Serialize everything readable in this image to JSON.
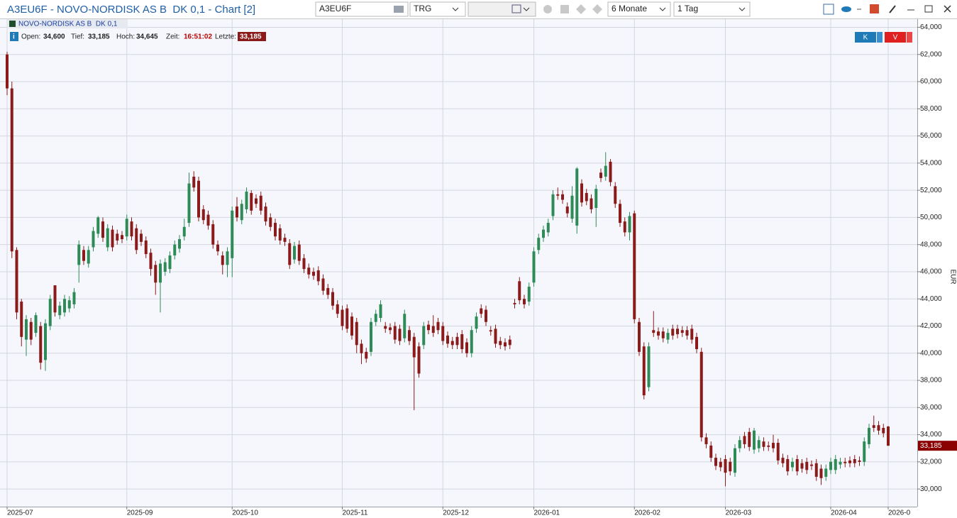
{
  "window": {
    "title": "A3EU6F - NOVO-NORDISK AS B  DK 0,1 - Chart [2]",
    "symbol_field": "A3EU6F",
    "exchange_field": "TRG",
    "period_field": "6 Monate",
    "interval_field": "1 Tag"
  },
  "quote": {
    "open_label": "Open:",
    "open": "34,600",
    "low_label": "Tief:",
    "low": "33,185",
    "high_label": "Hoch:",
    "high": "34,645",
    "time_label": "Zeit:",
    "time": "16:51:02",
    "last_label": "Letzte:",
    "last": "33,185"
  },
  "buttons": {
    "buy": "K",
    "sell": "V"
  },
  "chart_data": {
    "type": "candlestick",
    "legend_label": "NOVO-NORDISK AS B  DK 0,1",
    "y_label": "EUR",
    "up_color": "#2e8b57",
    "down_color": "#8b1a1a",
    "grid": true,
    "ylim": [
      28700,
      64600
    ],
    "yticks": [
      {
        "value": 30000,
        "label": "30,000"
      },
      {
        "value": 32000,
        "label": "32,000"
      },
      {
        "value": 34000,
        "label": "34,000"
      },
      {
        "value": 36000,
        "label": "36,000"
      },
      {
        "value": 38000,
        "label": "38,000"
      },
      {
        "value": 40000,
        "label": "40,000"
      },
      {
        "value": 42000,
        "label": "42,000"
      },
      {
        "value": 44000,
        "label": "44,000"
      },
      {
        "value": 46000,
        "label": "46,000"
      },
      {
        "value": 48000,
        "label": "48,000"
      },
      {
        "value": 50000,
        "label": "50,000"
      },
      {
        "value": 52000,
        "label": "52,000"
      },
      {
        "value": 54000,
        "label": "54,000"
      },
      {
        "value": 56000,
        "label": "56,000"
      },
      {
        "value": 58000,
        "label": "58,000"
      },
      {
        "value": 60000,
        "label": "60,000"
      },
      {
        "value": 62000,
        "label": "62,000"
      },
      {
        "value": 64000,
        "label": "64,000"
      }
    ],
    "last_price": {
      "value": 33185,
      "label": "33,185"
    },
    "categories": [
      "2025-07",
      null,
      null,
      null,
      null,
      null,
      null,
      null,
      null,
      null,
      null,
      null,
      null,
      null,
      null,
      null,
      null,
      null,
      null,
      null,
      null,
      null,
      null,
      null,
      null,
      "2025-09",
      null,
      null,
      null,
      null,
      null,
      null,
      null,
      null,
      null,
      null,
      null,
      null,
      null,
      null,
      null,
      null,
      null,
      null,
      null,
      null,
      null,
      "2025-10",
      null,
      null,
      null,
      null,
      null,
      null,
      null,
      null,
      null,
      null,
      null,
      null,
      null,
      null,
      null,
      null,
      null,
      null,
      null,
      null,
      null,
      null,
      "2025-11",
      null,
      null,
      null,
      null,
      null,
      null,
      null,
      null,
      null,
      null,
      null,
      null,
      null,
      null,
      null,
      null,
      null,
      null,
      null,
      null,
      "2025-12",
      null,
      null,
      null,
      null,
      null,
      null,
      null,
      null,
      null,
      null,
      null,
      null,
      null,
      null,
      null,
      null,
      null,
      null,
      "2026-01",
      null,
      null,
      null,
      null,
      null,
      null,
      null,
      null,
      null,
      null,
      null,
      null,
      null,
      null,
      null,
      null,
      null,
      null,
      null,
      null,
      "2026-02",
      null,
      null,
      null,
      null,
      null,
      null,
      null,
      null,
      null,
      null,
      null,
      null,
      null,
      null,
      null,
      null,
      null,
      null,
      "2026-03",
      null,
      null,
      null,
      null,
      null,
      null,
      null,
      null,
      null,
      null,
      null,
      null,
      null,
      null,
      null,
      null,
      null,
      null,
      null,
      null,
      null,
      "2026-04",
      null,
      null,
      null,
      null,
      null,
      null,
      null,
      null,
      null,
      null,
      null,
      "2026-0"
    ],
    "ohlc": [
      [
        62000,
        62200,
        59000,
        59500
      ],
      [
        59500,
        60000,
        47000,
        47500
      ],
      [
        47600,
        47800,
        42500,
        43000
      ],
      [
        43800,
        44000,
        40500,
        41200
      ],
      [
        41000,
        42800,
        39800,
        42500
      ],
      [
        42300,
        42600,
        40600,
        41000
      ],
      [
        41500,
        43000,
        41200,
        42800
      ],
      [
        42000,
        42300,
        38800,
        39300
      ],
      [
        39500,
        42500,
        38700,
        42200
      ],
      [
        42000,
        44300,
        41700,
        44000
      ],
      [
        45000,
        45000,
        42700,
        43000
      ],
      [
        42800,
        43800,
        42500,
        43500
      ],
      [
        43000,
        44300,
        42700,
        44000
      ],
      [
        43300,
        44200,
        43000,
        43900
      ],
      [
        43600,
        44800,
        43300,
        44500
      ],
      [
        46500,
        48300,
        45200,
        48000
      ],
      [
        47600,
        47900,
        46500,
        46800
      ],
      [
        46600,
        47900,
        46300,
        47600
      ],
      [
        47800,
        49300,
        47500,
        49000
      ],
      [
        48800,
        50100,
        48500,
        50000
      ],
      [
        49700,
        50000,
        48200,
        48500
      ],
      [
        47800,
        49500,
        47500,
        49200
      ],
      [
        49100,
        49400,
        47500,
        47800
      ],
      [
        48800,
        49100,
        48000,
        48300
      ],
      [
        48700,
        49000,
        48100,
        48400
      ],
      [
        48600,
        50200,
        48300,
        49900
      ],
      [
        49700,
        50000,
        48300,
        48600
      ],
      [
        49200,
        49500,
        47300,
        47600
      ],
      [
        48800,
        49100,
        47900,
        48200
      ],
      [
        48300,
        48600,
        47000,
        47300
      ],
      [
        47400,
        47700,
        45700,
        46200
      ],
      [
        46500,
        46800,
        44300,
        45200
      ],
      [
        45200,
        46900,
        43000,
        46600
      ],
      [
        46000,
        47000,
        45700,
        46700
      ],
      [
        46200,
        47500,
        45900,
        47200
      ],
      [
        47200,
        48300,
        46900,
        48000
      ],
      [
        47700,
        48700,
        47400,
        48400
      ],
      [
        48600,
        49900,
        48300,
        49300
      ],
      [
        49600,
        53300,
        49300,
        52500
      ],
      [
        53000,
        53400,
        51900,
        52200
      ],
      [
        52700,
        53000,
        49700,
        50000
      ],
      [
        50600,
        50900,
        49500,
        49800
      ],
      [
        50200,
        50500,
        49100,
        49400
      ],
      [
        49500,
        49800,
        47700,
        48000
      ],
      [
        48000,
        48300,
        47200,
        47500
      ],
      [
        47200,
        47500,
        45800,
        46500
      ],
      [
        46500,
        47800,
        45600,
        47500
      ],
      [
        47000,
        50800,
        45600,
        50500
      ],
      [
        50800,
        51500,
        49700,
        50000
      ],
      [
        49800,
        51300,
        49500,
        51000
      ],
      [
        50600,
        52200,
        50300,
        51900
      ],
      [
        51800,
        52000,
        50200,
        50500
      ],
      [
        51400,
        51700,
        50700,
        51000
      ],
      [
        51600,
        51900,
        50200,
        50500
      ],
      [
        50800,
        51100,
        49400,
        49700
      ],
      [
        50000,
        50300,
        49000,
        49300
      ],
      [
        49600,
        49900,
        48300,
        48600
      ],
      [
        49200,
        49500,
        48000,
        48300
      ],
      [
        48500,
        48800,
        47900,
        48200
      ],
      [
        48100,
        48400,
        46200,
        46500
      ],
      [
        46900,
        48200,
        46600,
        47900
      ],
      [
        48000,
        48300,
        46500,
        46800
      ],
      [
        47000,
        47300,
        45900,
        46200
      ],
      [
        46300,
        46600,
        45500,
        45800
      ],
      [
        46000,
        46300,
        45400,
        45700
      ],
      [
        46100,
        46400,
        45000,
        45300
      ],
      [
        45500,
        45800,
        44300,
        44600
      ],
      [
        44800,
        45100,
        44000,
        44300
      ],
      [
        44500,
        44800,
        43200,
        43500
      ],
      [
        43600,
        43900,
        42600,
        42900
      ],
      [
        43200,
        43500,
        41700,
        42000
      ],
      [
        43300,
        43600,
        41500,
        41800
      ],
      [
        42700,
        43000,
        41000,
        41300
      ],
      [
        42300,
        42600,
        40000,
        40600
      ],
      [
        40700,
        41000,
        39200,
        40000
      ],
      [
        40100,
        40400,
        39300,
        39600
      ],
      [
        40100,
        42600,
        39800,
        42300
      ],
      [
        42300,
        43200,
        42000,
        42900
      ],
      [
        42600,
        43900,
        42300,
        43600
      ],
      [
        42000,
        42300,
        41500,
        41800
      ],
      [
        41900,
        42200,
        41400,
        41700
      ],
      [
        42000,
        42300,
        40700,
        41000
      ],
      [
        41800,
        42100,
        40600,
        40900
      ],
      [
        41100,
        43200,
        40800,
        42900
      ],
      [
        41700,
        42000,
        40600,
        40900
      ],
      [
        41200,
        41500,
        35800,
        39700
      ],
      [
        40500,
        40800,
        38200,
        38500
      ],
      [
        40600,
        42300,
        40300,
        42000
      ],
      [
        42100,
        42400,
        41400,
        41700
      ],
      [
        42000,
        42800,
        41200,
        41500
      ],
      [
        42300,
        42600,
        41400,
        41700
      ],
      [
        42000,
        42300,
        40600,
        40900
      ],
      [
        41300,
        41600,
        40400,
        40700
      ],
      [
        40900,
        41200,
        40300,
        40600
      ],
      [
        41200,
        41500,
        40300,
        40600
      ],
      [
        41400,
        41700,
        40000,
        40300
      ],
      [
        40800,
        41100,
        39700,
        40000
      ],
      [
        40000,
        42000,
        39700,
        41700
      ],
      [
        41800,
        43000,
        41500,
        42700
      ],
      [
        43300,
        43600,
        42600,
        42900
      ],
      [
        43200,
        43500,
        42000,
        42300
      ],
      [
        41700,
        42000,
        41300,
        41600
      ],
      [
        41800,
        42100,
        40400,
        40700
      ],
      [
        40900,
        41200,
        40300,
        40600
      ],
      [
        40800,
        41100,
        40200,
        40500
      ],
      [
        41000,
        41300,
        40300,
        40600
      ],
      [
        43700,
        44000,
        43300,
        43600
      ],
      [
        45300,
        45600,
        43600,
        43900
      ],
      [
        44000,
        44300,
        43300,
        43600
      ],
      [
        43800,
        45200,
        43500,
        44900
      ],
      [
        45200,
        47800,
        44900,
        47500
      ],
      [
        47600,
        48800,
        47300,
        48500
      ],
      [
        48500,
        49400,
        48200,
        49100
      ],
      [
        48900,
        49900,
        48600,
        49600
      ],
      [
        50100,
        52000,
        49800,
        51700
      ],
      [
        51700,
        52200,
        51300,
        51600
      ],
      [
        51700,
        52000,
        51000,
        51300
      ],
      [
        50800,
        51100,
        50000,
        50300
      ],
      [
        49900,
        52300,
        49600,
        51600
      ],
      [
        49400,
        53700,
        48800,
        53600
      ],
      [
        52500,
        52800,
        50800,
        51100
      ],
      [
        51800,
        52100,
        50900,
        51200
      ],
      [
        51400,
        51700,
        50300,
        50600
      ],
      [
        50700,
        52400,
        49300,
        52100
      ],
      [
        53300,
        53600,
        52600,
        52900
      ],
      [
        53000,
        54800,
        52700,
        53800
      ],
      [
        54100,
        54300,
        52300,
        52600
      ],
      [
        52300,
        52600,
        50700,
        51000
      ],
      [
        51000,
        51300,
        49300,
        49600
      ],
      [
        49700,
        50000,
        48600,
        48900
      ],
      [
        48900,
        50400,
        48300,
        50100
      ],
      [
        50300,
        50500,
        42200,
        42500
      ],
      [
        42300,
        42600,
        39800,
        40100
      ],
      [
        40500,
        40800,
        36600,
        36900
      ],
      [
        37500,
        40800,
        37200,
        40500
      ],
      [
        41700,
        43100,
        41200,
        41500
      ],
      [
        41600,
        41900,
        41000,
        41300
      ],
      [
        41600,
        41900,
        40800,
        41100
      ],
      [
        41000,
        41800,
        40700,
        41500
      ],
      [
        41800,
        42100,
        41000,
        41300
      ],
      [
        41800,
        42100,
        41100,
        41400
      ],
      [
        41700,
        42000,
        41200,
        41500
      ],
      [
        41700,
        42000,
        41000,
        41300
      ],
      [
        41800,
        42100,
        40700,
        41000
      ],
      [
        41200,
        41500,
        40000,
        40300
      ],
      [
        40100,
        40400,
        33500,
        33800
      ],
      [
        33800,
        34100,
        33000,
        33300
      ],
      [
        33200,
        33500,
        32000,
        32300
      ],
      [
        32300,
        32600,
        31400,
        31700
      ],
      [
        32000,
        32300,
        31300,
        31600
      ],
      [
        32200,
        32500,
        30200,
        31200
      ],
      [
        32000,
        32300,
        31000,
        31300
      ],
      [
        31200,
        33300,
        30900,
        33000
      ],
      [
        33000,
        33900,
        32700,
        33600
      ],
      [
        33900,
        34200,
        33000,
        33300
      ],
      [
        34200,
        34500,
        32800,
        33100
      ],
      [
        32900,
        34500,
        32600,
        34300
      ],
      [
        33000,
        33900,
        32700,
        33600
      ],
      [
        33500,
        33800,
        32800,
        33100
      ],
      [
        33200,
        33500,
        32800,
        33100
      ],
      [
        33400,
        34000,
        32700,
        33000
      ],
      [
        33400,
        33700,
        31800,
        32100
      ],
      [
        32300,
        32600,
        31600,
        31900
      ],
      [
        32200,
        32500,
        31000,
        31300
      ],
      [
        31600,
        32300,
        31300,
        32000
      ],
      [
        32200,
        32500,
        31000,
        31300
      ],
      [
        31900,
        32200,
        31200,
        31500
      ],
      [
        32000,
        32300,
        31100,
        31400
      ],
      [
        31800,
        32100,
        31400,
        31700
      ],
      [
        31900,
        32200,
        30600,
        30900
      ],
      [
        31500,
        31800,
        30300,
        30800
      ],
      [
        30900,
        31800,
        30600,
        31500
      ],
      [
        31400,
        32300,
        31100,
        32000
      ],
      [
        31400,
        32500,
        31100,
        32200
      ],
      [
        31800,
        32300,
        31500,
        32000
      ],
      [
        32000,
        32300,
        31600,
        31900
      ],
      [
        32100,
        32400,
        31600,
        31900
      ],
      [
        32200,
        32500,
        31600,
        31900
      ],
      [
        32100,
        32400,
        31700,
        32000
      ],
      [
        32000,
        33800,
        31700,
        33500
      ],
      [
        33300,
        34800,
        33000,
        34500
      ],
      [
        34700,
        35400,
        34200,
        34500
      ],
      [
        34700,
        35000,
        34000,
        34300
      ],
      [
        34500,
        34800,
        33800,
        34100
      ],
      [
        34600,
        34645,
        33185,
        33185
      ]
    ]
  }
}
